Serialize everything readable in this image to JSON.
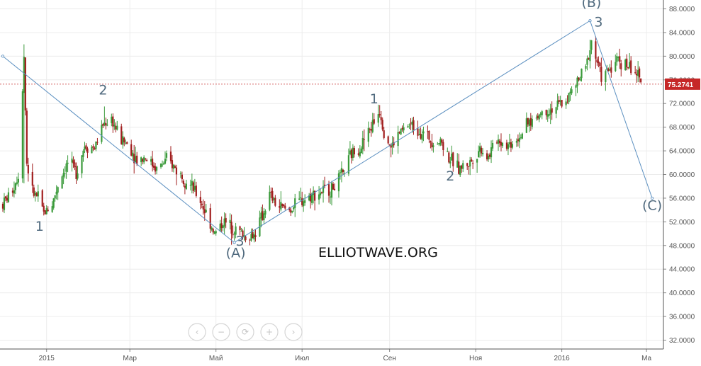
{
  "chart_data": {
    "type": "candlestick",
    "title": "",
    "xlabel": "",
    "ylabel": "",
    "x_ticks": [
      "2015",
      "Мар",
      "Май",
      "Июл",
      "Сен",
      "Ноя",
      "2016",
      "Ма"
    ],
    "y_ticks": [
      "32.0000",
      "36.0000",
      "40.0000",
      "44.0000",
      "48.0000",
      "52.0000",
      "56.0000",
      "60.0000",
      "64.0000",
      "68.0000",
      "72.0000",
      "76.0000",
      "80.0000",
      "84.0000",
      "88.0000"
    ],
    "ylim": [
      30.5,
      89.5
    ],
    "grid": true,
    "current_price": "75.2741",
    "watermark": "ELLIOTWAVE.ORG",
    "price_path": [
      [
        "2014-12-01",
        55.0
      ],
      [
        "2014-12-08",
        57.5
      ],
      [
        "2014-12-12",
        60.0
      ],
      [
        "2014-12-16",
        80.0
      ],
      [
        "2014-12-18",
        62.0
      ],
      [
        "2014-12-22",
        57.0
      ],
      [
        "2014-12-26",
        56.0
      ],
      [
        "2014-12-30",
        53.5
      ],
      [
        "2015-01-05",
        55.0
      ],
      [
        "2015-01-10",
        59.0
      ],
      [
        "2015-01-16",
        62.0
      ],
      [
        "2015-01-22",
        60.5
      ],
      [
        "2015-01-28",
        65.0
      ],
      [
        "2015-02-04",
        64.5
      ],
      [
        "2015-02-10",
        68.5
      ],
      [
        "2015-02-16",
        69.5
      ],
      [
        "2015-02-22",
        66.0
      ],
      [
        "2015-02-28",
        65.0
      ],
      [
        "2015-03-06",
        62.5
      ],
      [
        "2015-03-12",
        63.0
      ],
      [
        "2015-03-20",
        61.0
      ],
      [
        "2015-03-28",
        62.5
      ],
      [
        "2015-04-04",
        60.5
      ],
      [
        "2015-04-12",
        58.5
      ],
      [
        "2015-04-20",
        55.5
      ],
      [
        "2015-04-26",
        52.5
      ],
      [
        "2015-04-30",
        50.0
      ],
      [
        "2015-05-06",
        52.0
      ],
      [
        "2015-05-14",
        51.0
      ],
      [
        "2015-05-22",
        49.5
      ],
      [
        "2015-05-28",
        49.8
      ],
      [
        "2015-06-03",
        53.0
      ],
      [
        "2015-06-08",
        56.5
      ],
      [
        "2015-06-14",
        54.5
      ],
      [
        "2015-06-22",
        54.0
      ],
      [
        "2015-06-30",
        55.5
      ],
      [
        "2015-07-10",
        56.8
      ],
      [
        "2015-07-22",
        57.5
      ],
      [
        "2015-07-30",
        60.0
      ],
      [
        "2015-08-05",
        63.5
      ],
      [
        "2015-08-12",
        65.0
      ],
      [
        "2015-08-20",
        68.5
      ],
      [
        "2015-08-25",
        71.0
      ],
      [
        "2015-08-28",
        67.5
      ],
      [
        "2015-09-02",
        64.5
      ],
      [
        "2015-09-08",
        67.0
      ],
      [
        "2015-09-15",
        68.5
      ],
      [
        "2015-09-22",
        67.5
      ],
      [
        "2015-09-30",
        66.0
      ],
      [
        "2015-10-08",
        65.5
      ],
      [
        "2015-10-14",
        62.5
      ],
      [
        "2015-10-20",
        61.0
      ],
      [
        "2015-10-28",
        62.0
      ],
      [
        "2015-11-04",
        64.5
      ],
      [
        "2015-11-10",
        63.0
      ],
      [
        "2015-11-16",
        66.0
      ],
      [
        "2015-11-24",
        65.0
      ],
      [
        "2015-12-02",
        66.5
      ],
      [
        "2015-12-10",
        69.0
      ],
      [
        "2015-12-18",
        70.5
      ],
      [
        "2015-12-24",
        71.0
      ],
      [
        "2016-01-04",
        72.5
      ],
      [
        "2016-01-12",
        75.5
      ],
      [
        "2016-01-18",
        78.0
      ],
      [
        "2016-01-22",
        82.5
      ],
      [
        "2016-01-26",
        79.0
      ],
      [
        "2016-01-30",
        76.0
      ],
      [
        "2016-02-04",
        78.0
      ],
      [
        "2016-02-10",
        79.5
      ],
      [
        "2016-02-16",
        78.5
      ],
      [
        "2016-02-22",
        77.5
      ],
      [
        "2016-02-26",
        75.27
      ]
    ],
    "wave_lines": [
      {
        "from": [
          "2014-12-01",
          80.0
        ],
        "to": [
          "2015-05-14",
          48.5
        ]
      },
      {
        "from": [
          "2015-05-14",
          48.5
        ],
        "to": [
          "2016-01-21",
          86.0
        ]
      },
      {
        "from": [
          "2016-01-21",
          86.0
        ],
        "to": [
          "2016-03-05",
          56.0
        ]
      }
    ],
    "annotations": [
      {
        "text": "1",
        "x": "2014-12-27",
        "y": 50.5
      },
      {
        "text": "2",
        "x": "2015-02-10",
        "y": 73.5
      },
      {
        "text": "(A)",
        "x": "2015-05-15",
        "y": 46.0
      },
      {
        "text": "3",
        "x": "2015-05-18",
        "y": 48.0
      },
      {
        "text": "1",
        "x": "2015-08-21",
        "y": 72.0
      },
      {
        "text": "2",
        "x": "2015-10-14",
        "y": 59.0
      },
      {
        "text": "(B)",
        "x": "2016-01-22",
        "y": 88.3
      },
      {
        "text": "3",
        "x": "2016-01-27",
        "y": 85.0
      },
      {
        "text": "(C)",
        "x": "2016-03-05",
        "y": 54.0
      }
    ],
    "colors": {
      "up": "#3a9a3a",
      "down": "#a11e1e",
      "wave_line": "#5b8fc0",
      "price_line": "#c62828",
      "price_box": "#c62828"
    }
  },
  "nav_buttons": [
    "‹",
    "−",
    "⟳",
    "+",
    "›"
  ]
}
